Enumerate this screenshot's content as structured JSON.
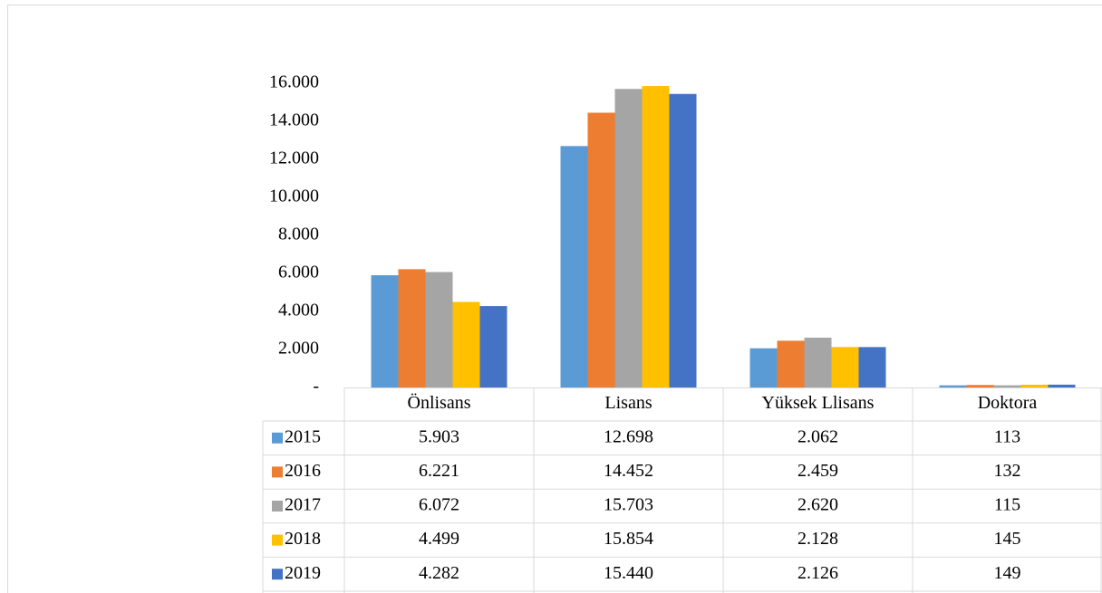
{
  "chart_data": {
    "type": "bar",
    "categories": [
      "Önlisans",
      "Lisans",
      "Yüksek Llisans",
      "Doktora"
    ],
    "series": [
      {
        "name": "2015",
        "color": "#5b9bd5",
        "values": [
          5903,
          12698,
          2062,
          113
        ],
        "value_labels": [
          "5.903",
          "12.698",
          "2.062",
          "113"
        ]
      },
      {
        "name": "2016",
        "color": "#ed7d31",
        "values": [
          6221,
          14452,
          2459,
          132
        ],
        "value_labels": [
          "6.221",
          "14.452",
          "2.459",
          "132"
        ]
      },
      {
        "name": "2017",
        "color": "#a5a5a5",
        "values": [
          6072,
          15703,
          2620,
          115
        ],
        "value_labels": [
          "6.072",
          "15.703",
          "2.620",
          "115"
        ]
      },
      {
        "name": "2018",
        "color": "#ffc000",
        "values": [
          4499,
          15854,
          2128,
          145
        ],
        "value_labels": [
          "4.499",
          "15.854",
          "2.128",
          "145"
        ]
      },
      {
        "name": "2019",
        "color": "#4472c4",
        "values": [
          4282,
          15440,
          2126,
          149
        ],
        "value_labels": [
          "4.282",
          "15.440",
          "2.126",
          "149"
        ]
      }
    ],
    "ylim": [
      0,
      16000
    ],
    "yticks": [
      {
        "value": 0,
        "label": "-"
      },
      {
        "value": 2000,
        "label": "2.000"
      },
      {
        "value": 4000,
        "label": "4.000"
      },
      {
        "value": 6000,
        "label": "6.000"
      },
      {
        "value": 8000,
        "label": "8.000"
      },
      {
        "value": 10000,
        "label": "10.000"
      },
      {
        "value": 12000,
        "label": "12.000"
      },
      {
        "value": 14000,
        "label": "14.000"
      },
      {
        "value": 16000,
        "label": "16.000"
      }
    ],
    "grid": false,
    "legend": "table"
  }
}
